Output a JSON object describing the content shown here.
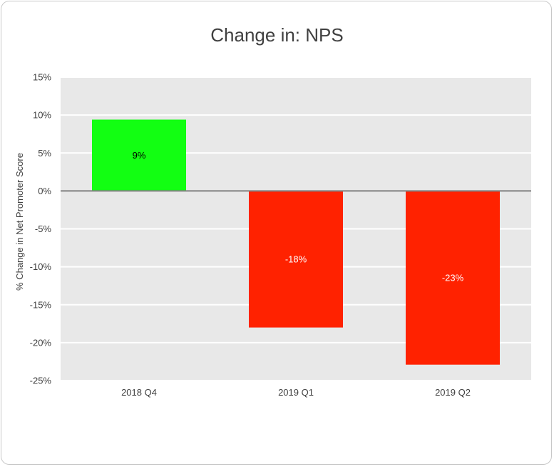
{
  "chart_data": {
    "type": "bar",
    "title": "Change in: NPS",
    "ylabel": "% Change in Net Promoter Score",
    "xlabel": "",
    "categories": [
      "2018 Q4",
      "2019 Q1",
      "2019 Q2"
    ],
    "values": [
      9.4,
      -18,
      -22.9
    ],
    "data_labels": [
      "9%",
      "-18%",
      "-23%"
    ],
    "ylim": [
      -25,
      15
    ],
    "yticks": [
      15,
      10,
      5,
      0,
      -5,
      -10,
      -15,
      -20,
      -25
    ],
    "ytick_labels": [
      "15%",
      "10%",
      "5%",
      "0%",
      "-5%",
      "-10%",
      "-15%",
      "-20%",
      "-25%"
    ],
    "grid": true,
    "legend": "none",
    "colors": {
      "positive": "#12ff12",
      "negative": "#ff2200",
      "plot_background": "#e8e8e8",
      "gridline": "#ffffff",
      "zero_line": "#808080",
      "label_on_positive": "#000000",
      "label_on_negative": "#ffffff"
    }
  }
}
